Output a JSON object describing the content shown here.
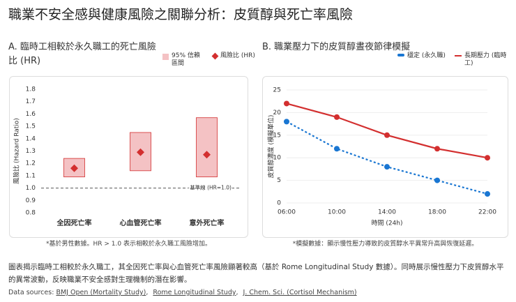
{
  "title": "職業不安全感與健康風險之關聯分析：皮質醇與死亡率風險",
  "chart_data": [
    {
      "type": "range",
      "title": "A. 臨時工相較於永久職工的死亡風險比 (HR)",
      "ylabel": "風險比 (Hazard Ratio)",
      "categories": [
        "全因死亡率",
        "心血管死亡率",
        "意外死亡率"
      ],
      "series": [
        {
          "name": "95% 信賴區間",
          "color": "#f4c2c4",
          "lower": [
            1.09,
            1.14,
            1.09
          ],
          "upper": [
            1.24,
            1.45,
            1.57
          ]
        },
        {
          "name": "風險比 (HR)",
          "color": "#d32f2f",
          "values": [
            1.16,
            1.29,
            1.27
          ]
        }
      ],
      "reference": {
        "value": 1,
        "label": "基準線 (HR=1.0)"
      },
      "ylim": [
        0.8,
        1.8
      ],
      "yticks": [
        0.8,
        0.9,
        {
          "value": 1,
          "label": "1.0"
        },
        1.1,
        1.2,
        1.3,
        1.4,
        1.5,
        1.6,
        1.7,
        1.8
      ],
      "grid": false,
      "note": "*基於男性數據。HR > 1.0 表示相較於永久職工風險增加。"
    },
    {
      "type": "line",
      "title": "B. 職業壓力下的皮質醇晝夜節律模擬",
      "xlabel": "時間 (24h)",
      "ylabel": "皮質醇濃度 (模擬單位)",
      "categories": [
        "06:00",
        "10:00",
        "14:00",
        "18:00",
        "22:00"
      ],
      "series": [
        {
          "name": "穩定 (永久職)",
          "color": "#1976d2",
          "dashed": true,
          "values": [
            18,
            12,
            8,
            5,
            2
          ]
        },
        {
          "name": "長期壓力 (臨時工)",
          "color": "#d32f2f",
          "dashed": false,
          "values": [
            22,
            19,
            15,
            12,
            10
          ]
        }
      ],
      "ylim": [
        0,
        25
      ],
      "yticks": [
        0,
        5,
        10,
        15,
        20,
        25
      ],
      "grid": true,
      "note": "*模擬數據：顯示慢性壓力導致的皮質醇水平異常升高與恢復延遲。"
    }
  ],
  "caption": "圖表揭示臨時工相較於永久職工，其全因死亡率與心血管死亡率風險顯著較高（基於 Rome Longitudinal Study 數據）。同時展示慢性壓力下皮質醇水平的異常波動，反映職業不安全感對生理機制的潛在影響。",
  "sources": {
    "label": "Data sources:",
    "links": [
      "BMJ Open (Mortality Study)",
      "Rome Longitudinal Study",
      "J. Chem. Sci. (Cortisol Mechanism)"
    ]
  }
}
